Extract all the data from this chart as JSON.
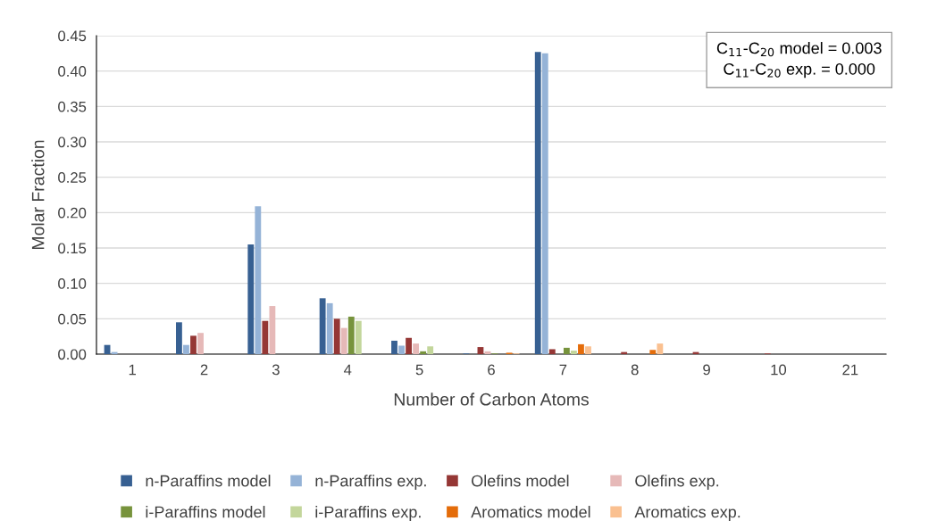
{
  "chart_data": {
    "type": "bar",
    "xlabel": "Number of Carbon Atoms",
    "ylabel": "Molar Fraction",
    "categories": [
      "1",
      "2",
      "3",
      "4",
      "5",
      "6",
      "7",
      "8",
      "9",
      "10",
      "21"
    ],
    "series": [
      {
        "name": "n-Paraffins model",
        "color": "#376092",
        "values": [
          0.013,
          0.045,
          0.155,
          0.079,
          0.019,
          0.001,
          0.427,
          0,
          0,
          0,
          0
        ]
      },
      {
        "name": "n-Paraffins exp.",
        "color": "#95b3d7",
        "values": [
          0.003,
          0.013,
          0.209,
          0.072,
          0.012,
          0,
          0.425,
          0,
          0,
          0,
          0
        ]
      },
      {
        "name": "Olefins model",
        "color": "#953735",
        "values": [
          0,
          0.026,
          0.047,
          0.05,
          0.023,
          0.01,
          0.007,
          0.003,
          0.003,
          0.001,
          0
        ]
      },
      {
        "name": "Olefins exp.",
        "color": "#e6b9b8",
        "values": [
          0,
          0.03,
          0.068,
          0.037,
          0.015,
          0.004,
          0,
          0,
          0,
          0,
          0
        ]
      },
      {
        "name": "i-Paraffins model",
        "color": "#77933c",
        "values": [
          0,
          0,
          0,
          0.053,
          0.004,
          0.001,
          0.009,
          0,
          0,
          0,
          0
        ]
      },
      {
        "name": "i-Paraffins exp.",
        "color": "#c3d69b",
        "values": [
          0,
          0,
          0,
          0.047,
          0.011,
          0,
          0.005,
          0,
          0,
          0,
          0
        ]
      },
      {
        "name": "Aromatics model",
        "color": "#e46c0a",
        "values": [
          0,
          0,
          0,
          0,
          0,
          0.002,
          0.014,
          0.006,
          0,
          0,
          0
        ]
      },
      {
        "name": "Aromatics exp.",
        "color": "#fac090",
        "values": [
          0,
          0,
          0,
          0,
          0,
          0.001,
          0.011,
          0.015,
          0,
          0,
          0
        ]
      }
    ],
    "ylim": [
      0,
      0.45
    ],
    "yticks": [
      {
        "value": 0,
        "label": "0.00"
      },
      {
        "value": 0.05,
        "label": "0.05"
      },
      {
        "value": 0.1,
        "label": "0.10"
      },
      {
        "value": 0.15,
        "label": "0.15"
      },
      {
        "value": 0.2,
        "label": "0.20"
      },
      {
        "value": 0.25,
        "label": "0.25"
      },
      {
        "value": 0.3,
        "label": "0.30"
      },
      {
        "value": 0.35,
        "label": "0.35"
      },
      {
        "value": 0.4,
        "label": "0.40"
      },
      {
        "value": 0.45,
        "label": "0.45"
      }
    ],
    "grid": "y",
    "legend": "bottom",
    "annotations": [
      "C$_{11}$-C$_{20}$ model = 0.003",
      "C$_{11}$-C$_{20}$ exp. = 0.000"
    ]
  }
}
